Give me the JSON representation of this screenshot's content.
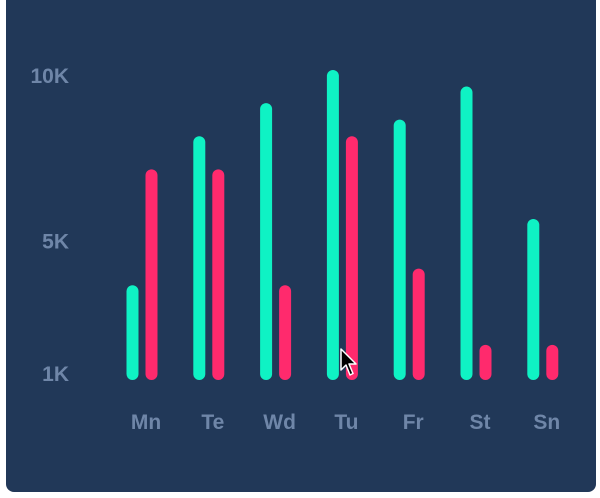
{
  "chart_data": {
    "type": "bar",
    "title": "",
    "xlabel": "",
    "ylabel": "",
    "categories": [
      "Mn",
      "Te",
      "Wd",
      "Tu",
      "Fr",
      "St",
      "Sn"
    ],
    "series": [
      {
        "color": "#0ff2c4",
        "values": [
          3500,
          8000,
          9000,
          10000,
          8500,
          9500,
          5500
        ]
      },
      {
        "color": "#ff2a6d",
        "values": [
          7000,
          7000,
          3500,
          8000,
          4000,
          1700,
          1700
        ]
      }
    ],
    "y_ticks": [
      {
        "value": 1000,
        "label": "1K"
      },
      {
        "value": 5000,
        "label": "5K"
      },
      {
        "value": 10000,
        "label": "10K"
      }
    ],
    "ylim": [
      1000,
      10000
    ],
    "grid": false,
    "legend": "none",
    "colors": {
      "background": "#213858",
      "axis_text": "#6f86a8"
    }
  }
}
